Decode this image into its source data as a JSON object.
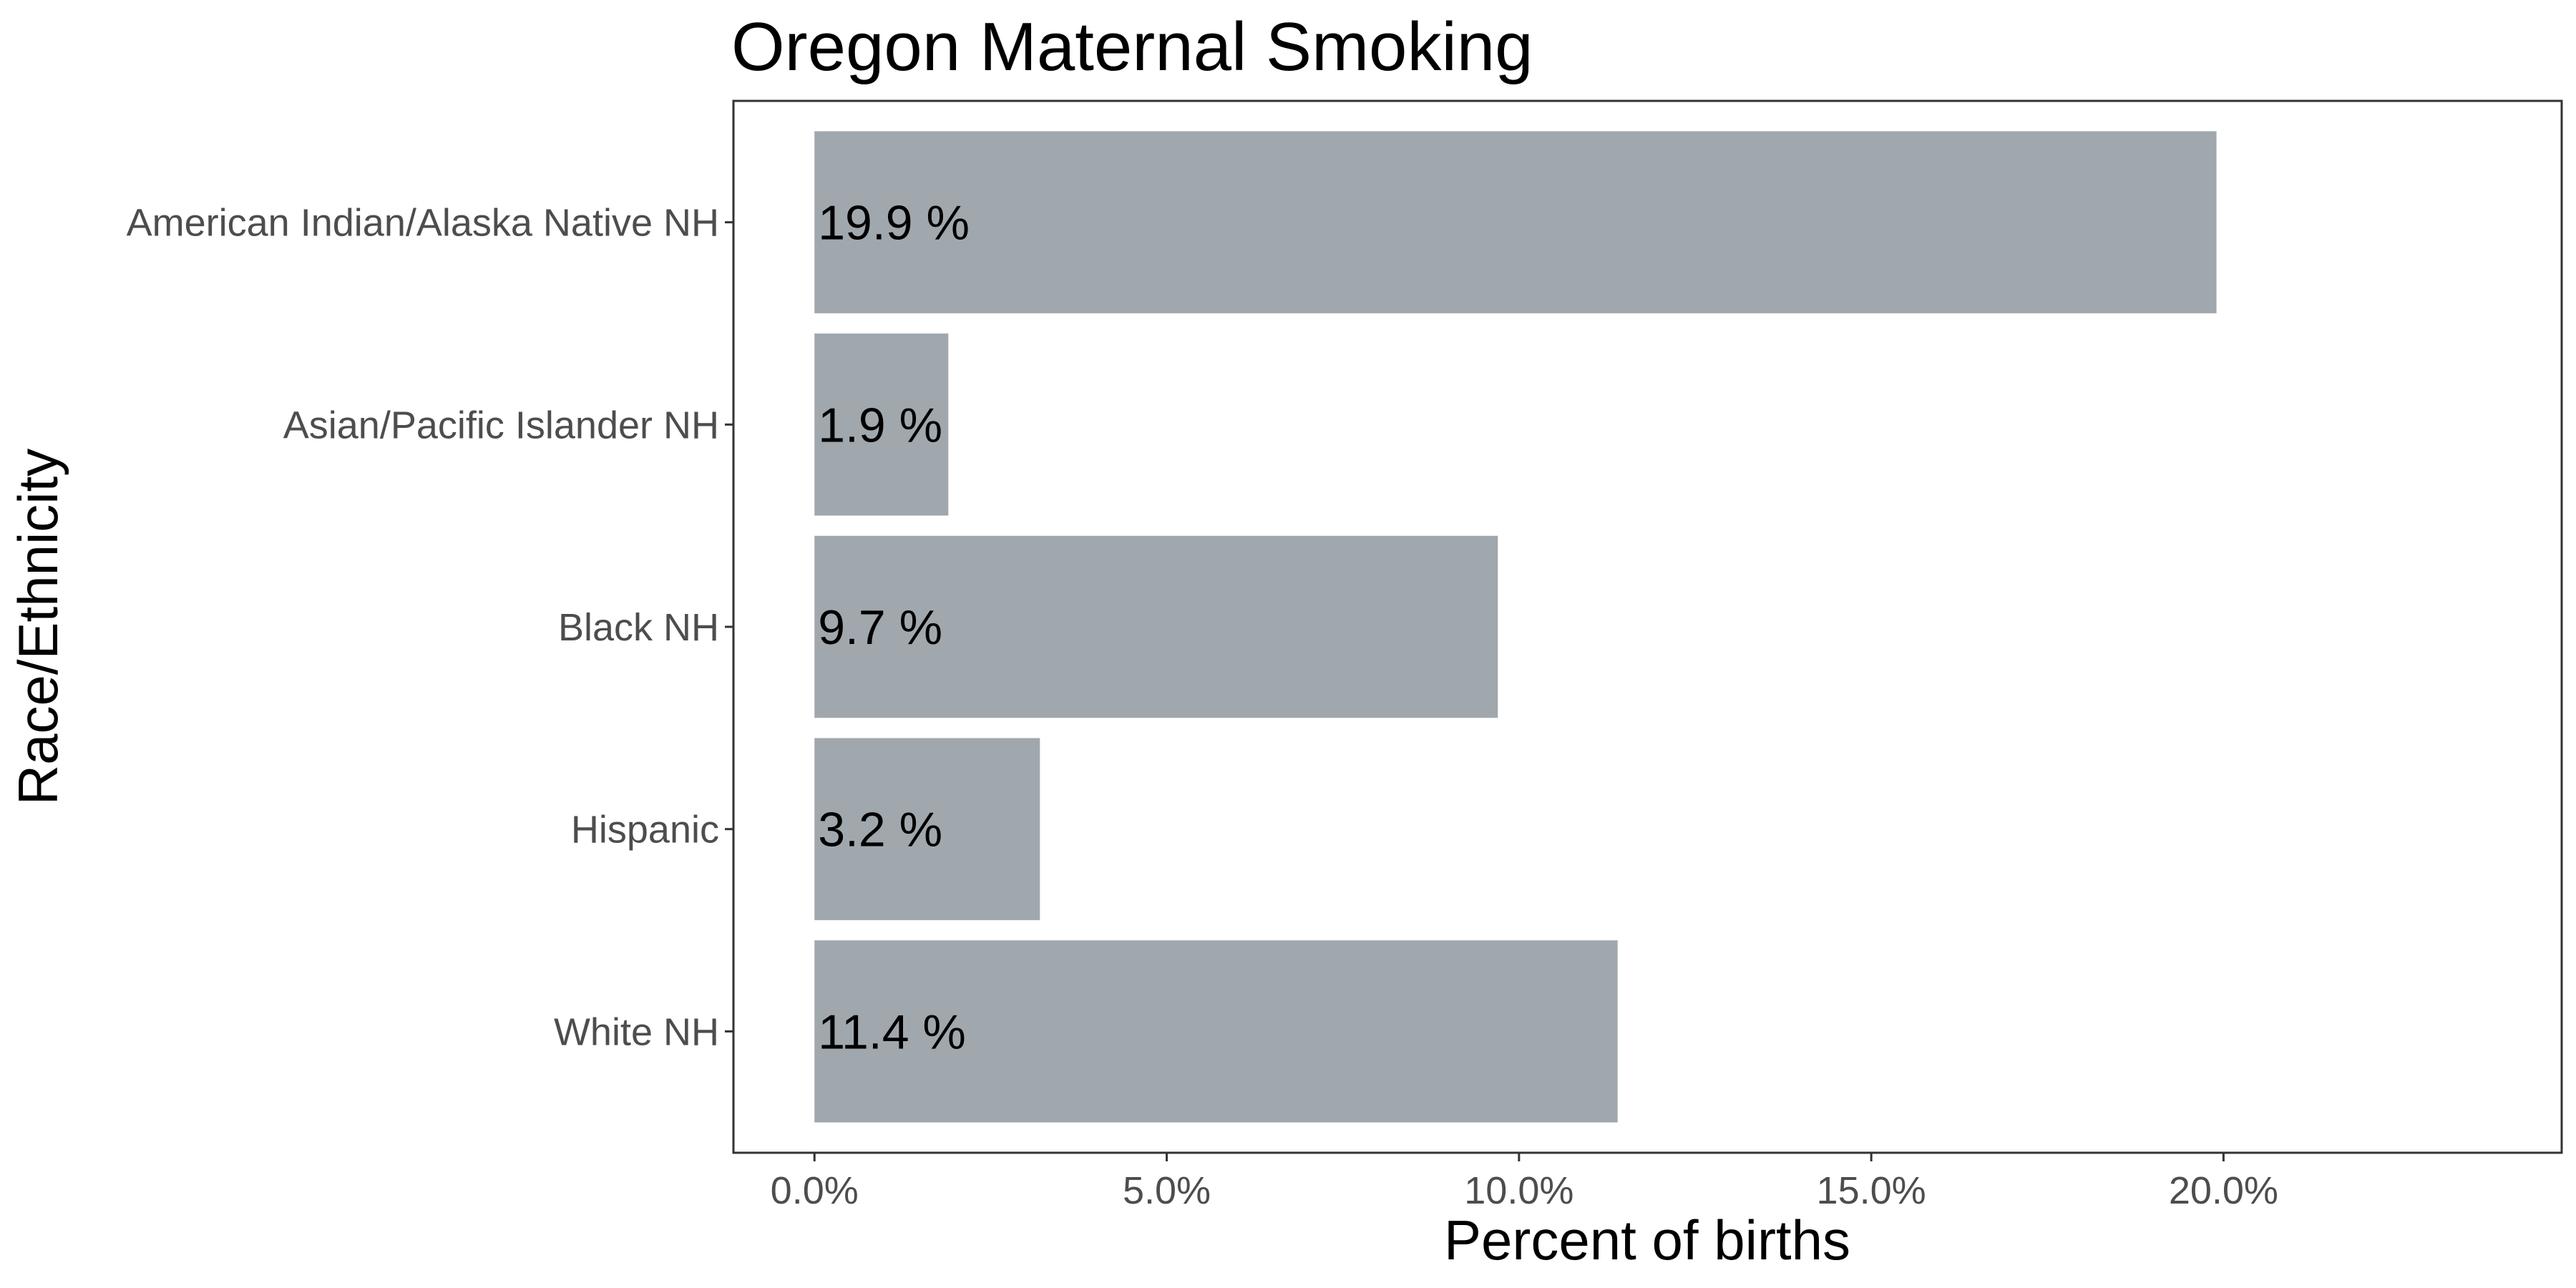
{
  "chart_data": {
    "type": "bar",
    "orientation": "horizontal",
    "title": "Oregon Maternal Smoking",
    "xlabel": "Percent of births",
    "ylabel": "Race/Ethnicity",
    "categories": [
      "American Indian/Alaska Native NH",
      "Asian/Pacific Islander NH",
      "Black NH",
      "Hispanic",
      "White NH"
    ],
    "values": [
      19.9,
      1.9,
      9.7,
      3.2,
      11.4
    ],
    "data_labels": [
      "19.9 %",
      "1.9 %",
      "9.7 %",
      "3.2 %",
      "11.4 %"
    ],
    "xlim": [
      -1.15,
      24.8
    ],
    "x_ticks": [
      0,
      5,
      10,
      15,
      20
    ],
    "x_tick_labels": [
      "0.0%",
      "5.0%",
      "10.0%",
      "15.0%",
      "20.0%"
    ],
    "grid": false,
    "legend": "none",
    "colors": {
      "bar": "#a0a8ae",
      "panel_border": "#333333",
      "tick": "#333333",
      "tick_label": "#4d4d4d",
      "text": "#000000",
      "background": "#ffffff"
    }
  }
}
